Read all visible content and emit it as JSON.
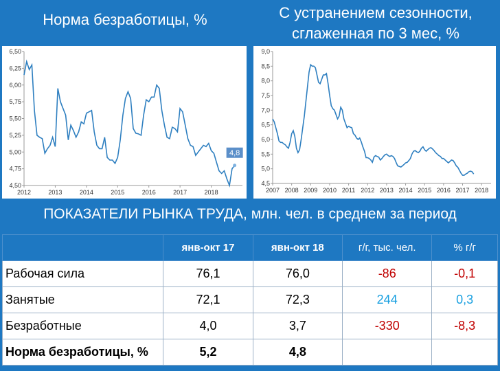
{
  "titles": {
    "left": "Норма безработицы, %",
    "right_line1": "С устранением сезонности,",
    "right_line2": "сглаженная по 3 мес, %"
  },
  "chart_data": [
    {
      "type": "line",
      "title": "Норма безработицы, %",
      "xlabel": "",
      "ylabel": "",
      "ylim": [
        4.5,
        6.5
      ],
      "yticks": [
        "6,50",
        "6,25",
        "6,00",
        "5,75",
        "5,50",
        "5,25",
        "5,00",
        "4,75",
        "4,50"
      ],
      "xticks": [
        "2012",
        "2013",
        "2014",
        "2015",
        "2016",
        "2017",
        "2018"
      ],
      "x_start": 2012.0,
      "x_step_months": 1,
      "grid": false,
      "color": "#2e7fc0",
      "annotation": "4,8",
      "values": [
        6.15,
        6.35,
        6.23,
        6.3,
        5.62,
        5.25,
        5.22,
        5.2,
        4.98,
        5.05,
        5.1,
        5.22,
        5.08,
        5.95,
        5.75,
        5.65,
        5.55,
        5.18,
        5.4,
        5.32,
        5.22,
        5.3,
        5.45,
        5.42,
        5.58,
        5.6,
        5.62,
        5.3,
        5.1,
        5.05,
        5.05,
        5.22,
        4.92,
        4.88,
        4.88,
        4.83,
        4.92,
        5.18,
        5.55,
        5.8,
        5.9,
        5.8,
        5.35,
        5.28,
        5.27,
        5.25,
        5.55,
        5.78,
        5.75,
        5.82,
        5.82,
        6.0,
        5.95,
        5.62,
        5.4,
        5.22,
        5.2,
        5.37,
        5.35,
        5.3,
        5.65,
        5.6,
        5.4,
        5.2,
        5.1,
        5.08,
        4.95,
        5.0,
        5.05,
        5.1,
        5.08,
        5.13,
        5.02,
        4.98,
        4.85,
        4.72,
        4.68,
        4.72,
        4.6,
        4.5,
        4.75,
        4.8
      ]
    },
    {
      "type": "line",
      "title": "С устранением сезонности, сглаженная по 3 мес, %",
      "xlabel": "",
      "ylabel": "",
      "ylim": [
        4.5,
        9.0
      ],
      "yticks": [
        "9,0",
        "8,5",
        "8,0",
        "7,5",
        "7,0",
        "6,5",
        "6,0",
        "5,5",
        "5,0",
        "4,5"
      ],
      "xticks": [
        "2007",
        "2008",
        "2009",
        "2010",
        "2011",
        "2012",
        "2013",
        "2014",
        "2015",
        "2016",
        "2017",
        "2018"
      ],
      "x_start": 2007.0,
      "x_step_months": 1,
      "grid": false,
      "color": "#2e7fc0",
      "values": [
        6.7,
        6.6,
        6.4,
        6.2,
        5.95,
        5.9,
        5.9,
        5.85,
        5.82,
        5.75,
        5.7,
        5.9,
        6.2,
        6.3,
        6.1,
        5.7,
        5.55,
        5.65,
        6.0,
        6.4,
        6.8,
        7.3,
        7.8,
        8.3,
        8.55,
        8.5,
        8.5,
        8.45,
        8.2,
        7.95,
        7.9,
        8.05,
        8.2,
        8.2,
        8.25,
        7.9,
        7.5,
        7.15,
        7.05,
        7.0,
        6.85,
        6.7,
        6.8,
        7.1,
        7.0,
        6.7,
        6.55,
        6.4,
        6.45,
        6.42,
        6.4,
        6.2,
        6.15,
        6.05,
        6.0,
        6.05,
        5.92,
        5.75,
        5.6,
        5.38,
        5.38,
        5.35,
        5.3,
        5.22,
        5.4,
        5.45,
        5.42,
        5.4,
        5.3,
        5.35,
        5.42,
        5.48,
        5.5,
        5.45,
        5.42,
        5.45,
        5.42,
        5.35,
        5.22,
        5.1,
        5.08,
        5.06,
        5.1,
        5.15,
        5.2,
        5.22,
        5.28,
        5.35,
        5.5,
        5.6,
        5.62,
        5.58,
        5.55,
        5.6,
        5.7,
        5.75,
        5.65,
        5.6,
        5.65,
        5.7,
        5.72,
        5.68,
        5.62,
        5.55,
        5.5,
        5.45,
        5.42,
        5.35,
        5.35,
        5.3,
        5.25,
        5.2,
        5.25,
        5.3,
        5.28,
        5.2,
        5.1,
        5.05,
        4.95,
        4.85,
        4.78,
        4.78,
        4.82,
        4.85,
        4.9,
        4.92,
        4.9,
        4.82
      ]
    }
  ],
  "table": {
    "title": "ПОКАЗАТЕЛИ РЫНКА ТРУДА, млн. чел. в среднем за период",
    "headers": [
      "",
      "янв-окт 17",
      "явн-окт 18",
      "г/г, тыс. чел.",
      "% г/г"
    ],
    "rows": [
      {
        "label": "Рабочая сила",
        "v1": "76,1",
        "v2": "76,0",
        "d1": "-86",
        "d2": "-0,1",
        "color": "#c00000"
      },
      {
        "label": "Занятые",
        "v1": "72,1",
        "v2": "72,3",
        "d1": "244",
        "d2": "0,3",
        "color": "#1aa0e0"
      },
      {
        "label": "Безработные",
        "v1": "4,0",
        "v2": "3,7",
        "d1": "-330",
        "d2": "-8,3",
        "color": "#c00000"
      }
    ],
    "total": {
      "label": "Норма безработицы, %",
      "v1": "5,2",
      "v2": "4,8"
    }
  }
}
